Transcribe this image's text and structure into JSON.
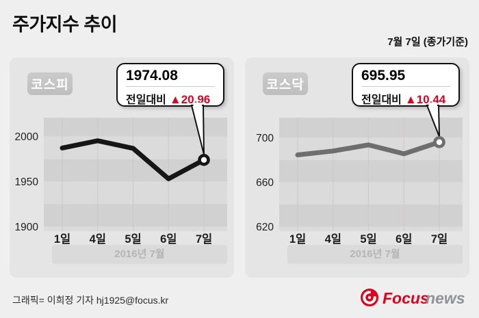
{
  "header": {
    "title": "주가지수 추이",
    "date_note": "7월 7일 (종가기준)"
  },
  "chart_data": [
    {
      "type": "line",
      "title_badge": "코스피",
      "callout": {
        "value": "1974.08",
        "label": "전일대비",
        "change": "▲20.96"
      },
      "x": [
        "1일",
        "4일",
        "5일",
        "6일",
        "7일"
      ],
      "values": [
        1987.3,
        1995.3,
        1986.9,
        1953.1,
        1974.08
      ],
      "ytick_labels": [
        "2000",
        "1950",
        "1900"
      ],
      "ytick_values": [
        2000,
        1950,
        1900
      ],
      "ylim": [
        1895,
        2021
      ],
      "band_step": 25,
      "band_dark_parity": 0,
      "line_color": "#161616",
      "axis_note": "2016년 7월",
      "legend": "none",
      "grid": "horizontal-bands"
    },
    {
      "type": "line",
      "title_badge": "코스닥",
      "callout": {
        "value": "695.95",
        "label": "전일대비",
        "change": "▲10.44"
      },
      "x": [
        "1일",
        "4일",
        "5일",
        "6일",
        "7일"
      ],
      "values": [
        684.5,
        688.0,
        693.5,
        685.5,
        695.95
      ],
      "ytick_labels": [
        "700",
        "660",
        "620"
      ],
      "ytick_values": [
        700,
        660,
        620
      ],
      "ylim": [
        616,
        718
      ],
      "band_step": 20,
      "band_dark_parity": 1,
      "line_color": "#6e6e6e",
      "axis_note": "2016년 7월",
      "legend": "none",
      "grid": "horizontal-bands"
    }
  ],
  "footer": {
    "credit": "그래픽= 이희정 기자 hj1925@focus.kr",
    "logo": {
      "word1": "Focus",
      "word2": "news"
    }
  },
  "colors": {
    "accent_red": "#e3001e",
    "logo_red": "#e3001b",
    "logo_gray": "#8d9399",
    "page_bg": "#f0efef",
    "panel_bg": "#e6e5e5",
    "band_dark": "#d2d1d1",
    "band_light": "#dcdbdb",
    "vgrid": "#c8c7c7"
  }
}
